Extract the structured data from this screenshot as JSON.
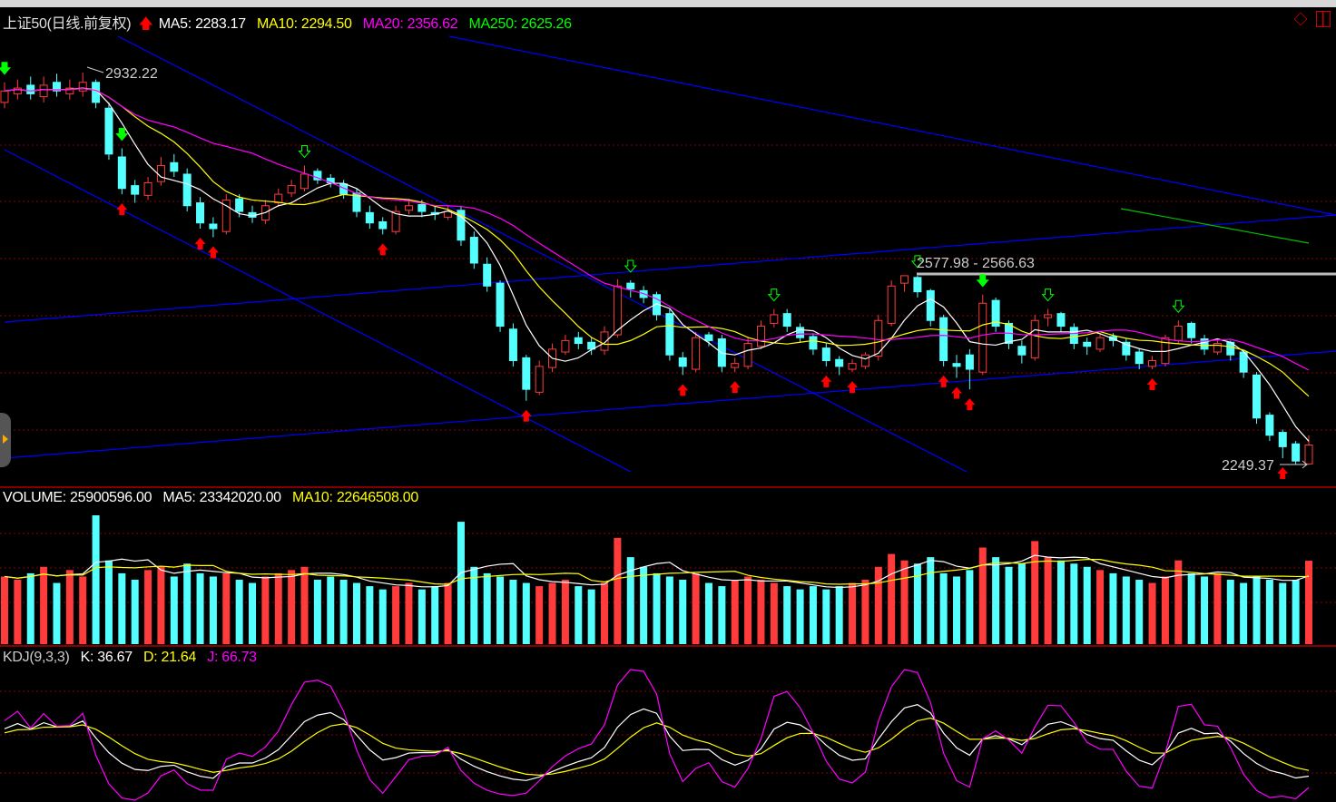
{
  "header": {
    "title": "上证50(日线.前复权)",
    "ma5": "MA5: 2283.17",
    "ma10": "MA10: 2294.50",
    "ma20": "MA20: 2356.62",
    "ma250": "MA250: 2625.26"
  },
  "volume_header": {
    "volume": "VOLUME: 25900596.00",
    "ma5": "MA5: 23342020.00",
    "ma10": "MA10: 22646508.00"
  },
  "kdj_header": {
    "name": "KDJ(9,3,3)",
    "k": "K: 36.67",
    "d": "D: 21.64",
    "j": "J: 66.73"
  },
  "annotations": {
    "high_label": "2932.22",
    "range_label": "2577.98 - 2566.63",
    "low_label": "2249.37"
  },
  "colors": {
    "up": "#ff3b3b",
    "down": "#54ffff",
    "ma5": "#ffffff",
    "ma10": "#ffff00",
    "ma20": "#ff00ff",
    "ma250": "#00ff00",
    "trend": "#0000ff",
    "grid": "#8b0000"
  },
  "chart_data": {
    "type": "candlestick",
    "ylim": [
      2240,
      2940
    ],
    "close": [
      2900,
      2905,
      2895,
      2910,
      2900,
      2905,
      2915,
      2880,
      2790,
      2730,
      2720,
      2740,
      2770,
      2760,
      2700,
      2670,
      2660,
      2710,
      2690,
      2680,
      2700,
      2720,
      2735,
      2755,
      2745,
      2740,
      2720,
      2690,
      2670,
      2660,
      2690,
      2700,
      2690,
      2685,
      2690,
      2640,
      2600,
      2560,
      2490,
      2430,
      2380,
      2420,
      2450,
      2465,
      2460,
      2450,
      2480,
      2560,
      2555,
      2540,
      2510,
      2440,
      2420,
      2470,
      2465,
      2420,
      2425,
      2460,
      2490,
      2510,
      2490,
      2470,
      2450,
      2430,
      2420,
      2425,
      2440,
      2500,
      2560,
      2578,
      2550,
      2500,
      2430,
      2420,
      2415,
      2530,
      2490,
      2460,
      2440,
      2500,
      2510,
      2490,
      2460,
      2455,
      2470,
      2465,
      2440,
      2425,
      2430,
      2470,
      2490,
      2470,
      2450,
      2460,
      2440,
      2410,
      2330,
      2300,
      2280,
      2255,
      2283
    ],
    "open": [
      2880,
      2895,
      2910,
      2890,
      2915,
      2895,
      2900,
      2915,
      2870,
      2785,
      2735,
      2718,
      2742,
      2775,
      2755,
      2705,
      2668,
      2655,
      2712,
      2688,
      2675,
      2705,
      2722,
      2730,
      2760,
      2748,
      2738,
      2722,
      2688,
      2672,
      2655,
      2692,
      2702,
      2688,
      2680,
      2692,
      2645,
      2598,
      2565,
      2485,
      2435,
      2375,
      2418,
      2445,
      2470,
      2462,
      2448,
      2475,
      2565,
      2552,
      2545,
      2512,
      2435,
      2415,
      2475,
      2468,
      2418,
      2420,
      2455,
      2495,
      2512,
      2488,
      2472,
      2452,
      2432,
      2415,
      2420,
      2438,
      2495,
      2565,
      2575,
      2552,
      2505,
      2425,
      2440,
      2410,
      2535,
      2495,
      2455,
      2435,
      2505,
      2512,
      2488,
      2462,
      2450,
      2472,
      2462,
      2445,
      2420,
      2425,
      2465,
      2495,
      2468,
      2445,
      2462,
      2445,
      2405,
      2335,
      2305,
      2285,
      2250
    ],
    "high": [
      2915,
      2920,
      2925,
      2925,
      2930,
      2920,
      2932,
      2920,
      2880,
      2800,
      2745,
      2750,
      2785,
      2790,
      2765,
      2715,
      2680,
      2720,
      2720,
      2700,
      2710,
      2730,
      2745,
      2770,
      2765,
      2755,
      2745,
      2730,
      2700,
      2680,
      2700,
      2712,
      2710,
      2700,
      2700,
      2700,
      2655,
      2610,
      2570,
      2495,
      2440,
      2430,
      2460,
      2475,
      2480,
      2470,
      2490,
      2572,
      2570,
      2560,
      2550,
      2520,
      2445,
      2480,
      2480,
      2475,
      2435,
      2470,
      2500,
      2520,
      2520,
      2495,
      2478,
      2460,
      2438,
      2432,
      2445,
      2510,
      2570,
      2578,
      2578,
      2555,
      2510,
      2440,
      2450,
      2545,
      2540,
      2500,
      2465,
      2510,
      2520,
      2515,
      2495,
      2470,
      2478,
      2478,
      2468,
      2450,
      2438,
      2475,
      2500,
      2498,
      2475,
      2468,
      2465,
      2448,
      2410,
      2340,
      2310,
      2290,
      2300
    ],
    "low": [
      2870,
      2885,
      2885,
      2880,
      2890,
      2885,
      2890,
      2870,
      2780,
      2720,
      2705,
      2710,
      2735,
      2750,
      2690,
      2660,
      2645,
      2650,
      2680,
      2670,
      2668,
      2698,
      2715,
      2725,
      2738,
      2732,
      2712,
      2680,
      2660,
      2650,
      2650,
      2685,
      2680,
      2675,
      2675,
      2630,
      2590,
      2550,
      2480,
      2420,
      2360,
      2370,
      2410,
      2440,
      2450,
      2440,
      2440,
      2470,
      2540,
      2530,
      2500,
      2430,
      2405,
      2410,
      2455,
      2410,
      2410,
      2415,
      2450,
      2488,
      2480,
      2462,
      2440,
      2420,
      2405,
      2410,
      2415,
      2430,
      2490,
      2550,
      2540,
      2490,
      2420,
      2400,
      2380,
      2405,
      2480,
      2450,
      2425,
      2430,
      2490,
      2480,
      2450,
      2440,
      2445,
      2455,
      2430,
      2415,
      2415,
      2420,
      2460,
      2460,
      2440,
      2440,
      2430,
      2400,
      2320,
      2290,
      2260,
      2249,
      2248
    ],
    "volume": [
      21,
      20,
      22,
      24,
      19,
      23,
      21,
      40,
      26,
      22,
      20,
      23,
      24,
      21,
      25,
      22,
      21,
      22,
      20,
      19,
      21,
      22,
      23,
      24,
      20,
      21,
      20,
      19,
      18,
      17,
      18,
      19,
      17,
      18,
      19,
      38,
      24,
      22,
      21,
      20,
      19,
      18,
      19,
      20,
      18,
      17,
      19,
      33,
      27,
      24,
      22,
      21,
      20,
      22,
      19,
      18,
      20,
      21,
      20,
      19,
      18,
      17,
      18,
      17,
      18,
      19,
      20,
      24,
      28,
      26,
      25,
      27,
      22,
      21,
      23,
      30,
      27,
      24,
      25,
      32,
      27,
      26,
      25,
      24,
      23,
      22,
      21,
      20,
      19,
      21,
      26,
      22,
      21,
      22,
      20,
      19,
      21,
      20,
      19,
      20,
      25.9
    ],
    "volume_unit": "millions",
    "signals": [
      {
        "i": 0,
        "type": "sell"
      },
      {
        "i": 9,
        "type": "sell"
      },
      {
        "i": 9,
        "type": "buy"
      },
      {
        "i": 15,
        "type": "buy"
      },
      {
        "i": 16,
        "type": "buy"
      },
      {
        "i": 23,
        "type": "sell-hollow"
      },
      {
        "i": 29,
        "type": "buy"
      },
      {
        "i": 40,
        "type": "buy"
      },
      {
        "i": 48,
        "type": "sell-hollow"
      },
      {
        "i": 52,
        "type": "buy"
      },
      {
        "i": 56,
        "type": "buy"
      },
      {
        "i": 59,
        "type": "sell-hollow"
      },
      {
        "i": 63,
        "type": "buy"
      },
      {
        "i": 65,
        "type": "buy"
      },
      {
        "i": 70,
        "type": "sell-hollow"
      },
      {
        "i": 72,
        "type": "buy"
      },
      {
        "i": 73,
        "type": "buy"
      },
      {
        "i": 74,
        "type": "buy"
      },
      {
        "i": 75,
        "type": "sell"
      },
      {
        "i": 80,
        "type": "sell-hollow"
      },
      {
        "i": 88,
        "type": "buy"
      },
      {
        "i": 90,
        "type": "sell-hollow"
      },
      {
        "i": 98,
        "type": "buy"
      }
    ]
  }
}
